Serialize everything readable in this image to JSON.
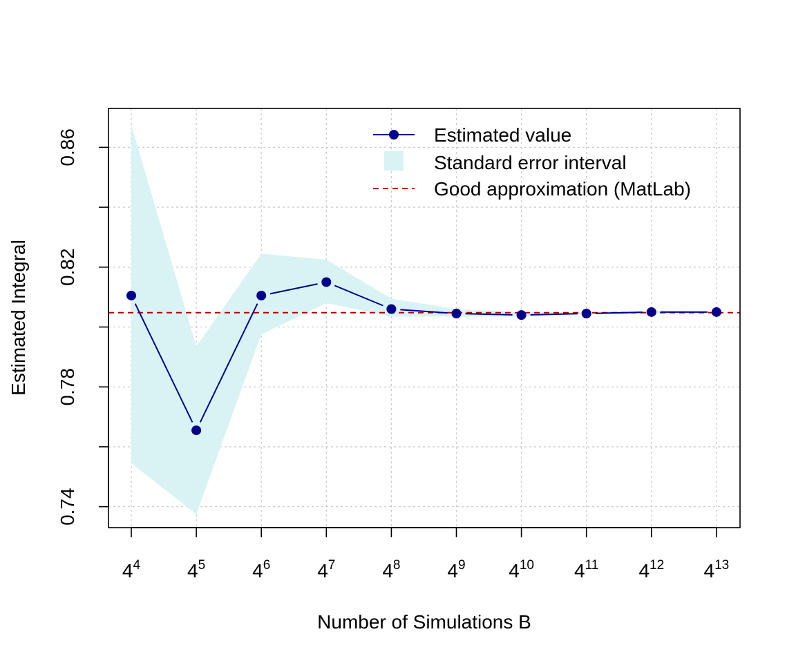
{
  "chart_data": {
    "type": "line",
    "title": "",
    "xlabel": "Number of Simulations B",
    "ylabel": "Estimated Integral",
    "x_base": "4",
    "x_exponents": [
      "4",
      "5",
      "6",
      "7",
      "8",
      "9",
      "10",
      "11",
      "12",
      "13"
    ],
    "ylim": [
      0.733,
      0.873
    ],
    "y_ticks": [
      0.74,
      0.76,
      0.78,
      0.8,
      0.82,
      0.84,
      0.86
    ],
    "y_tick_labels": [
      "0.74",
      "",
      "0.78",
      "",
      "0.82",
      "",
      "0.86"
    ],
    "grid": true,
    "legend_position": "top-right",
    "series": [
      {
        "name": "Estimated value",
        "values": [
          0.8105,
          0.7655,
          0.8105,
          0.815,
          0.806,
          0.8045,
          0.804,
          0.8045,
          0.805,
          0.805
        ],
        "color": "#00008b"
      }
    ],
    "interval": {
      "name": "Standard error interval",
      "lower": [
        0.7545,
        0.7375,
        0.7975,
        0.808,
        0.8035,
        0.8035,
        0.8035,
        0.8042,
        0.8045,
        0.8047
      ],
      "upper": [
        0.8675,
        0.7935,
        0.8245,
        0.8225,
        0.8095,
        0.806,
        0.805,
        0.805,
        0.8055,
        0.8053
      ],
      "color": "#d9f3f4"
    },
    "reference": {
      "name": "Good approximation (MatLab)",
      "value": 0.8048,
      "color": "#b00000"
    }
  }
}
